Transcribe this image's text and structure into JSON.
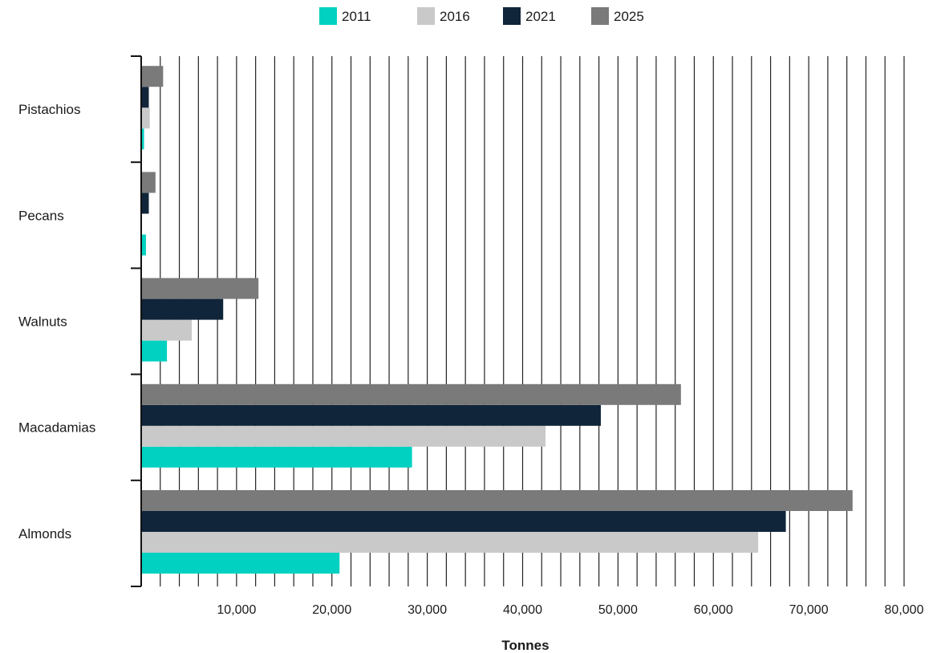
{
  "chart_data": {
    "type": "bar",
    "orientation": "horizontal",
    "title": "",
    "xlabel": "Tonnes",
    "ylabel": "",
    "categories": [
      "Pistachios",
      "Pecans",
      "Walnuts",
      "Macadamias",
      "Almonds"
    ],
    "series": [
      {
        "name": "2011",
        "color": "#00d1c1",
        "values": [
          300,
          500,
          2700,
          28400,
          20800
        ]
      },
      {
        "name": "2016",
        "color": "#c9c9c9",
        "values": [
          900,
          0,
          5300,
          42400,
          64700
        ]
      },
      {
        "name": "2021",
        "color": "#10253a",
        "values": [
          800,
          800,
          8600,
          48200,
          67600
        ]
      },
      {
        "name": "2025",
        "color": "#7a7a7a",
        "values": [
          2300,
          1500,
          12300,
          56600,
          74600
        ]
      }
    ],
    "xlim": [
      0,
      80000
    ],
    "xticks": [
      10000,
      20000,
      30000,
      40000,
      50000,
      60000,
      70000,
      80000
    ],
    "xtick_labels": [
      "10,000",
      "20,000",
      "30,000",
      "40,000",
      "50,000",
      "60,000",
      "70,000",
      "80,000"
    ],
    "minor_grid_step": 2000,
    "grid": true,
    "legend_position": "top-center"
  }
}
